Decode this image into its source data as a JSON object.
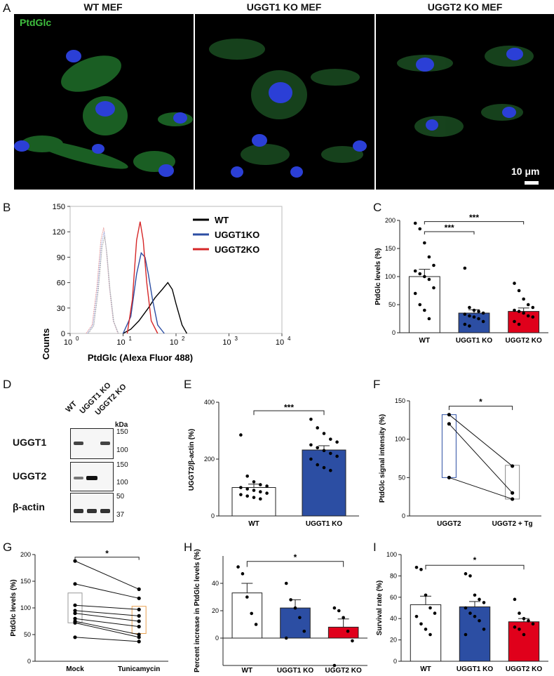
{
  "panel_labels": [
    "A",
    "B",
    "C",
    "D",
    "E",
    "F",
    "G",
    "H",
    "I"
  ],
  "panel_a": {
    "titles": [
      "WT MEF",
      "UGGT1 KO MEF",
      "UGGT2 KO MEF"
    ],
    "stain_label": "PtdGlc",
    "scale_bar": "10 μm",
    "colors": {
      "nucleus": "#2b3fd6",
      "cytoplasm": "#2f9a3a",
      "background": "#000000"
    }
  },
  "panel_b": {
    "ylabel": "Counts",
    "xlabel": "PtdGlc (Alexa Fluor 488)",
    "yticks": [
      "0",
      "30",
      "60",
      "90",
      "120",
      "150"
    ],
    "xticks": [
      "10",
      "10",
      "10",
      "10",
      "10"
    ],
    "xtick_exp": [
      "0",
      "1",
      "2",
      "3",
      "4"
    ],
    "legend": [
      "WT",
      "UGGT1KO",
      "UGGT2KO"
    ]
  },
  "panel_c": {
    "ylabel": "PtdGlc levels (%)",
    "yticks": [
      "0",
      "50",
      "100",
      "150",
      "200"
    ],
    "categories": [
      "WT",
      "UGGT1 KO",
      "UGGT2 KO"
    ],
    "sig": [
      "***",
      "***"
    ]
  },
  "panel_d": {
    "lanes": [
      "WT",
      "UGGT1 KO",
      "UGGT2 KO"
    ],
    "kda": "kDa",
    "rows": [
      {
        "name": "UGGT1",
        "markers": [
          "150",
          "100"
        ]
      },
      {
        "name": "UGGT2",
        "markers": [
          "150",
          "100"
        ]
      },
      {
        "name": "β-actin",
        "markers": [
          "50",
          "37"
        ]
      }
    ]
  },
  "panel_e": {
    "ylabel": "UGGT2/β-actin (%)",
    "yticks": [
      "0",
      "200",
      "400"
    ],
    "categories": [
      "WT",
      "UGGT1 KO"
    ],
    "sig": "***"
  },
  "panel_f": {
    "ylabel": "PtdGlc signal intensity (%)",
    "yticks": [
      "0",
      "50",
      "100",
      "150"
    ],
    "categories": [
      "UGGT2",
      "UGGT2 + Tg"
    ],
    "sig": "*"
  },
  "panel_g": {
    "ylabel": "PtdGlc levels (%)",
    "yticks": [
      "0",
      "50",
      "100",
      "150",
      "200"
    ],
    "categories": [
      "Mock",
      "Tunicamycin"
    ],
    "sig": "*"
  },
  "panel_h": {
    "ylabel": "Percent increase in PtdGlc levels (%)",
    "yticks": [
      "0",
      "20",
      "40"
    ],
    "categories": [
      "WT",
      "UGGT1 KO",
      "UGGT2 KO"
    ],
    "sig": "*"
  },
  "panel_i": {
    "ylabel": "Survival rate (%)",
    "yticks": [
      "0",
      "20",
      "40",
      "60",
      "80",
      "100"
    ],
    "categories": [
      "WT",
      "UGGT1 KO",
      "UGGT2 KO"
    ],
    "sig": "*"
  },
  "chart_data": [
    {
      "panel": "B",
      "type": "line",
      "title": "",
      "xlabel": "PtdGlc (Alexa Fluor 488)",
      "ylabel": "Counts",
      "xscale": "log",
      "xlim": [
        1,
        10000
      ],
      "ylim": [
        0,
        150
      ],
      "legend_position": "top-right",
      "series": [
        {
          "name": "WT",
          "color": "#000000",
          "x": [
            10,
            14,
            20,
            30,
            40,
            55,
            70,
            85,
            100,
            130,
            160
          ],
          "y": [
            0,
            5,
            15,
            30,
            42,
            52,
            60,
            52,
            35,
            10,
            0
          ]
        },
        {
          "name": "UGGT1KO",
          "color": "#2c4ea3",
          "x": [
            10,
            14,
            18,
            22,
            26,
            30,
            36,
            45,
            60
          ],
          "y": [
            0,
            20,
            70,
            95,
            90,
            70,
            40,
            10,
            0
          ]
        },
        {
          "name": "UGGT2KO",
          "color": "#d62728",
          "x": [
            12,
            15,
            18,
            21,
            24,
            28,
            34,
            45
          ],
          "y": [
            0,
            40,
            110,
            132,
            110,
            60,
            15,
            0
          ]
        }
      ]
    },
    {
      "panel": "C",
      "type": "bar",
      "title": "",
      "ylabel": "PtdGlc levels (%)",
      "ylim": [
        0,
        200
      ],
      "categories": [
        "WT",
        "UGGT1 KO",
        "UGGT2 KO"
      ],
      "values": [
        100,
        35,
        38
      ],
      "errors": [
        13,
        6,
        6
      ],
      "colors": [
        "#ffffff",
        "#2c4ea3",
        "#e0001b"
      ],
      "points": [
        [
          195,
          185,
          160,
          135,
          120,
          110,
          105,
          100,
          95,
          80,
          70,
          50,
          40,
          25
        ],
        [
          115,
          45,
          40,
          38,
          35,
          33,
          30,
          28,
          25,
          20,
          15,
          12
        ],
        [
          88,
          75,
          60,
          50,
          45,
          40,
          38,
          35,
          30,
          28,
          20,
          15
        ]
      ]
    },
    {
      "panel": "E",
      "type": "bar",
      "title": "",
      "ylabel": "UGGT2/β-actin (%)",
      "ylim": [
        0,
        400
      ],
      "categories": [
        "WT",
        "UGGT1 KO"
      ],
      "values": [
        100,
        232
      ],
      "errors": [
        12,
        15
      ],
      "colors": [
        "#ffffff",
        "#2c4ea3"
      ],
      "points": [
        [
          285,
          140,
          120,
          110,
          105,
          100,
          95,
          90,
          85,
          80,
          75,
          70,
          65,
          60
        ],
        [
          340,
          310,
          290,
          270,
          260,
          250,
          240,
          230,
          220,
          210,
          200,
          180,
          170,
          160
        ]
      ]
    },
    {
      "panel": "F",
      "type": "scatter",
      "title": "",
      "ylabel": "PtdGlc signal intensity (%)",
      "ylim": [
        0,
        150
      ],
      "categories": [
        "UGGT2",
        "UGGT2 + Tg"
      ],
      "pairs": [
        [
          132,
          65
        ],
        [
          120,
          30
        ],
        [
          50,
          22
        ]
      ],
      "box": [
        {
          "min": 50,
          "max": 132
        },
        {
          "min": 22,
          "max": 66
        }
      ]
    },
    {
      "panel": "G",
      "type": "scatter",
      "title": "",
      "ylabel": "PtdGlc levels (%)",
      "ylim": [
        0,
        200
      ],
      "categories": [
        "Mock",
        "Tunicamycin"
      ],
      "pairs": [
        [
          188,
          135
        ],
        [
          145,
          118
        ],
        [
          105,
          97
        ],
        [
          95,
          85
        ],
        [
          90,
          75
        ],
        [
          80,
          65
        ],
        [
          75,
          50
        ],
        [
          72,
          45
        ],
        [
          45,
          37
        ]
      ],
      "box": [
        {
          "min": 72,
          "max": 128
        },
        {
          "min": 52,
          "max": 103
        }
      ]
    },
    {
      "panel": "H",
      "type": "bar",
      "title": "",
      "ylabel": "Percent increase in PtdGlc levels (%)",
      "ylim": [
        -20,
        60
      ],
      "categories": [
        "WT",
        "UGGT1 KO",
        "UGGT2 KO"
      ],
      "values": [
        33,
        22,
        8
      ],
      "errors": [
        7,
        6,
        6
      ],
      "colors": [
        "#ffffff",
        "#2c4ea3",
        "#e0001b"
      ],
      "points": [
        [
          52,
          47,
          30,
          18,
          10
        ],
        [
          40,
          28,
          22,
          15,
          5,
          0
        ],
        [
          22,
          20,
          15,
          5,
          -2,
          -20
        ]
      ]
    },
    {
      "panel": "I",
      "type": "bar",
      "title": "",
      "ylabel": "Survival rate (%)",
      "ylim": [
        0,
        100
      ],
      "categories": [
        "WT",
        "UGGT1 KO",
        "UGGT2 KO"
      ],
      "values": [
        53,
        51,
        37
      ],
      "errors": [
        8,
        5,
        3
      ],
      "colors": [
        "#ffffff",
        "#2c4ea3",
        "#e0001b"
      ],
      "points": [
        [
          88,
          86,
          62,
          50,
          45,
          42,
          35,
          30,
          25
        ],
        [
          82,
          80,
          62,
          58,
          55,
          50,
          45,
          42,
          38,
          30,
          25
        ],
        [
          58,
          45,
          40,
          38,
          35,
          32,
          30,
          25
        ]
      ]
    }
  ]
}
